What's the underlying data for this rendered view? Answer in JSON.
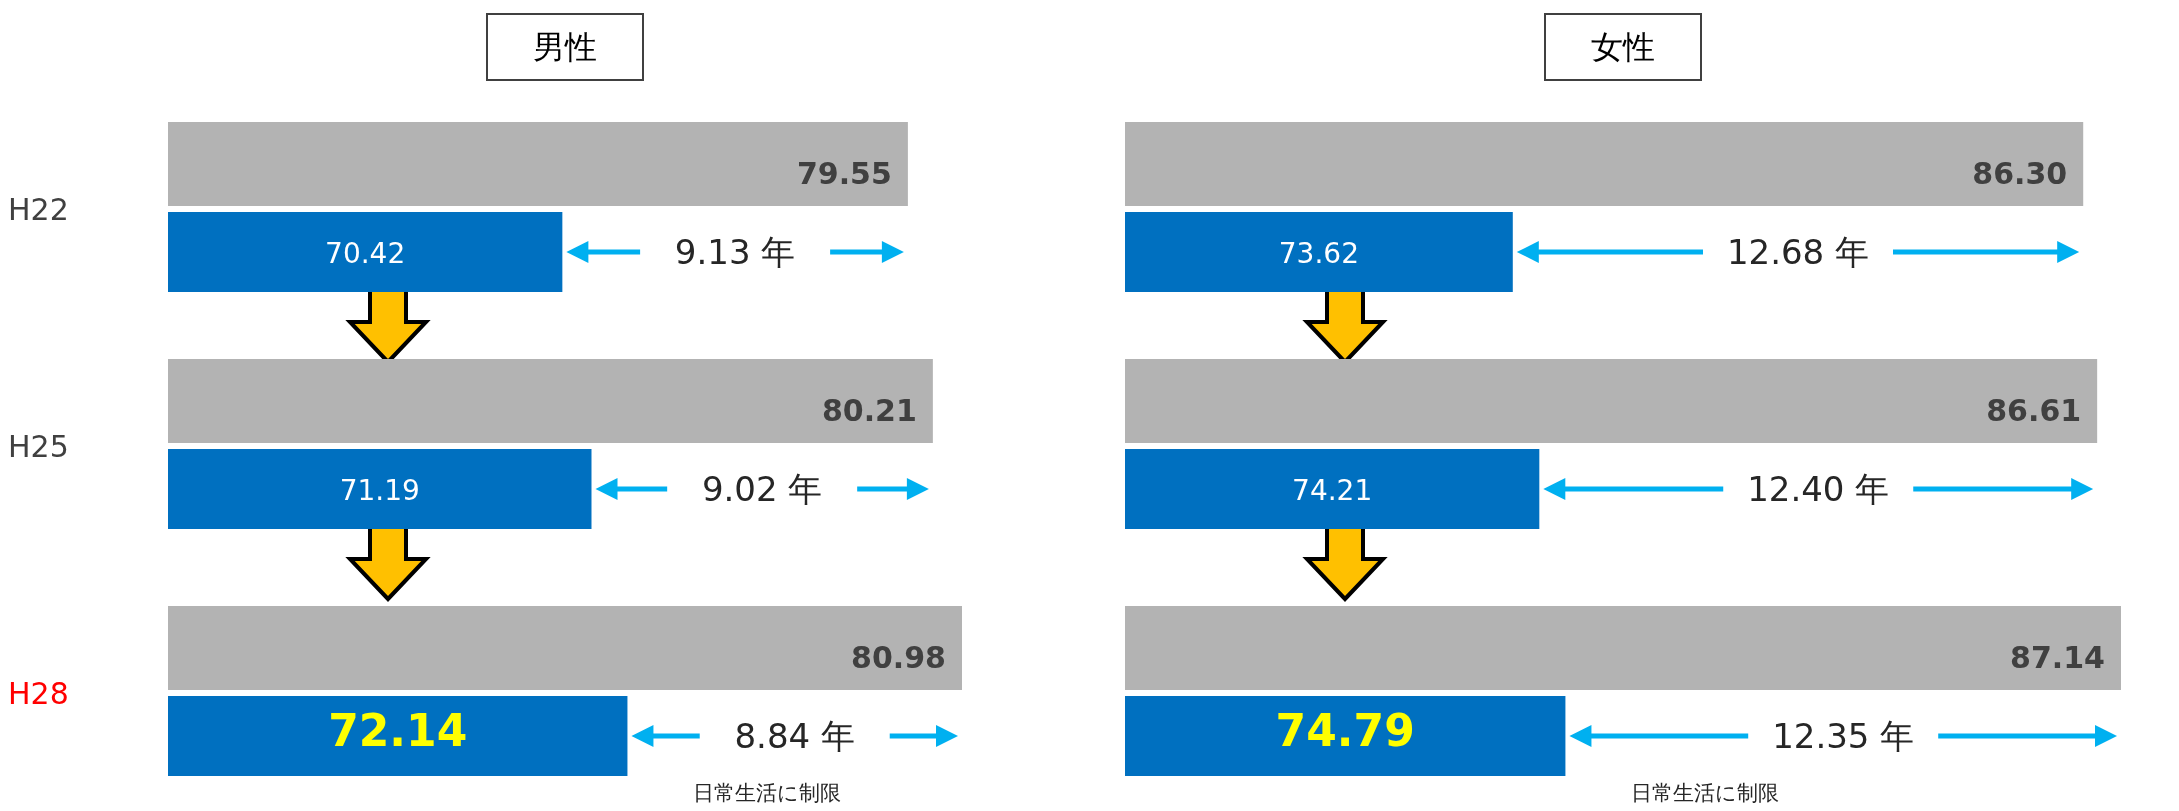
{
  "chart_data": [
    {
      "type": "bar",
      "orientation": "horizontal",
      "title": "男性",
      "categories": [
        "H22",
        "H25",
        "H28"
      ],
      "series": [
        {
          "color": "#b3b3b3",
          "values": [
            79.55,
            80.21,
            80.98
          ],
          "value_labels": [
            "79.55",
            "80.21",
            "80.98"
          ]
        },
        {
          "color": "#0070c0",
          "values": [
            70.42,
            71.19,
            72.14
          ],
          "value_labels": [
            "70.42",
            "71.19",
            "72.14"
          ]
        }
      ],
      "xlim": [
        60,
        80.98
      ],
      "tick_labels": "y",
      "annotations": [
        "9.13 年",
        "9.02 年",
        "8.84 年",
        "日常生活に制限"
      ]
    },
    {
      "type": "bar",
      "orientation": "horizontal",
      "title": "女性",
      "categories": [
        null,
        null,
        null
      ],
      "series": [
        {
          "color": "#b3b3b3",
          "values": [
            86.3,
            86.61,
            87.14
          ],
          "value_labels": [
            "86.30",
            "86.61",
            "87.14"
          ]
        },
        {
          "color": "#0070c0",
          "values": [
            73.62,
            74.21,
            74.79
          ],
          "value_labels": [
            "73.62",
            "74.21",
            "74.79"
          ]
        }
      ],
      "xlim": [
        65,
        87.14
      ],
      "tick_labels": false,
      "annotations": [
        "12.68 年",
        "12.40 年",
        "12.35 年",
        "日常生活に制限"
      ]
    }
  ]
}
